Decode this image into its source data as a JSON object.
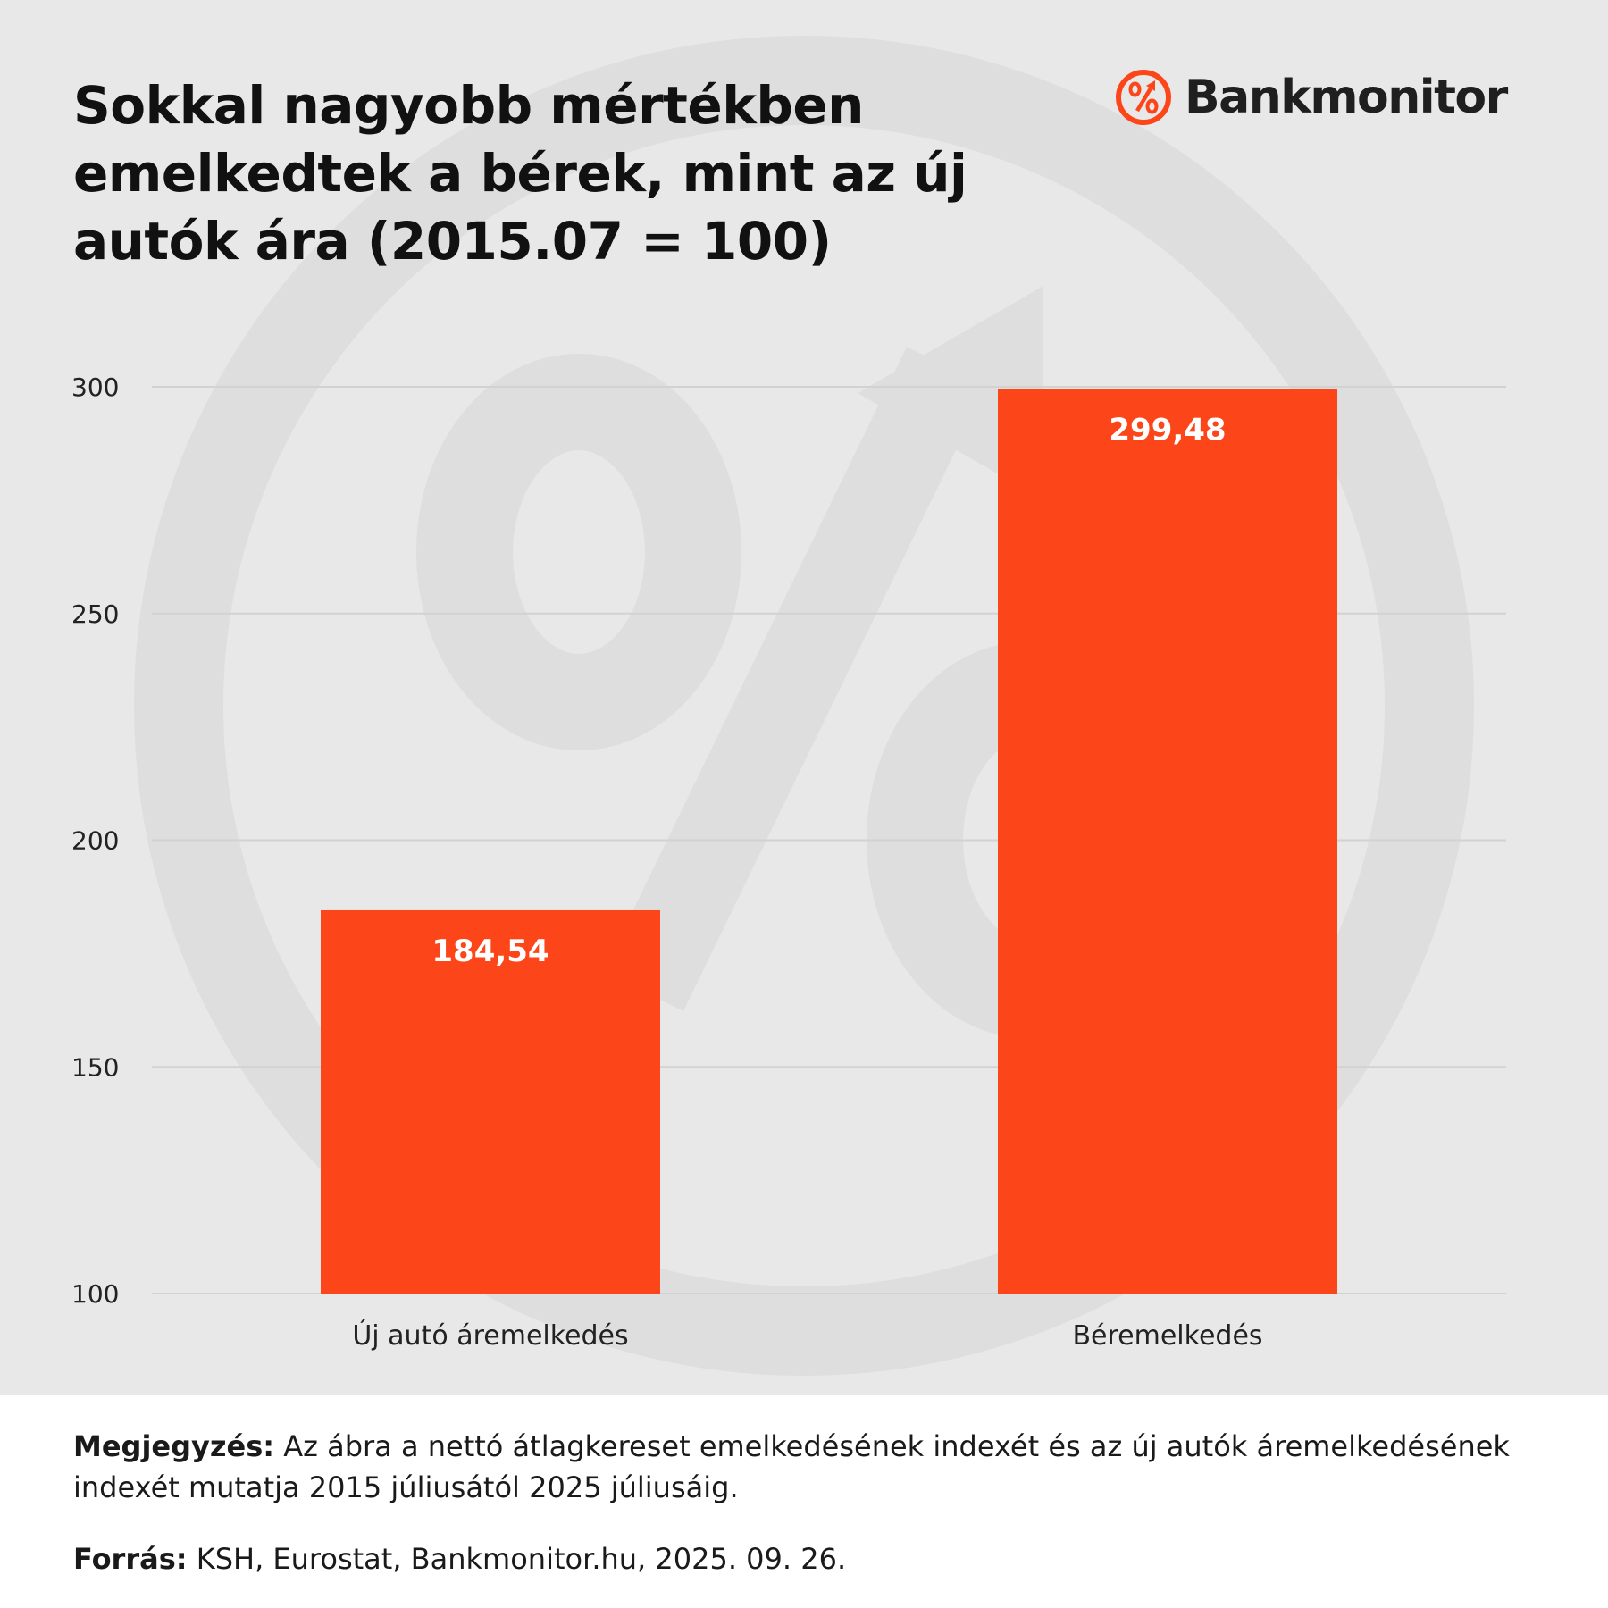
{
  "brand": {
    "name": "Bankmonitor",
    "accent_color": "#fc4619",
    "logo_icon": "percent-arrow-icon",
    "watermark_icon": "percent-arrow-icon"
  },
  "footer": {
    "note_label": "Megjegyzés:",
    "note_text": " Az ábra a nettó átlagkereset emelkedésének indexét és az új autók áremelkedésének indexét mutatja 2015 júliusától 2025 júliusáig.",
    "source_label": "Forrás:",
    "source_text": " KSH, Eurostat, Bankmonitor.hu, 2025. 09. 26."
  },
  "chart_data": {
    "type": "bar",
    "title": "Sokkal nagyobb mértékben emelkedtek a bérek, mint az új autók ára (2015.07 = 100)",
    "categories": [
      "Új autó áremelkedés",
      "Béremelkedés"
    ],
    "values": [
      184.54,
      299.48
    ],
    "value_labels": [
      "184,54",
      "299,48"
    ],
    "xlabel": "",
    "ylabel": "",
    "ylim": [
      100,
      300
    ],
    "yticks": [
      100,
      150,
      200,
      250,
      300
    ],
    "grid": true,
    "legend": "none",
    "bar_color": "#fc4619",
    "label_color": "#ffffff"
  }
}
